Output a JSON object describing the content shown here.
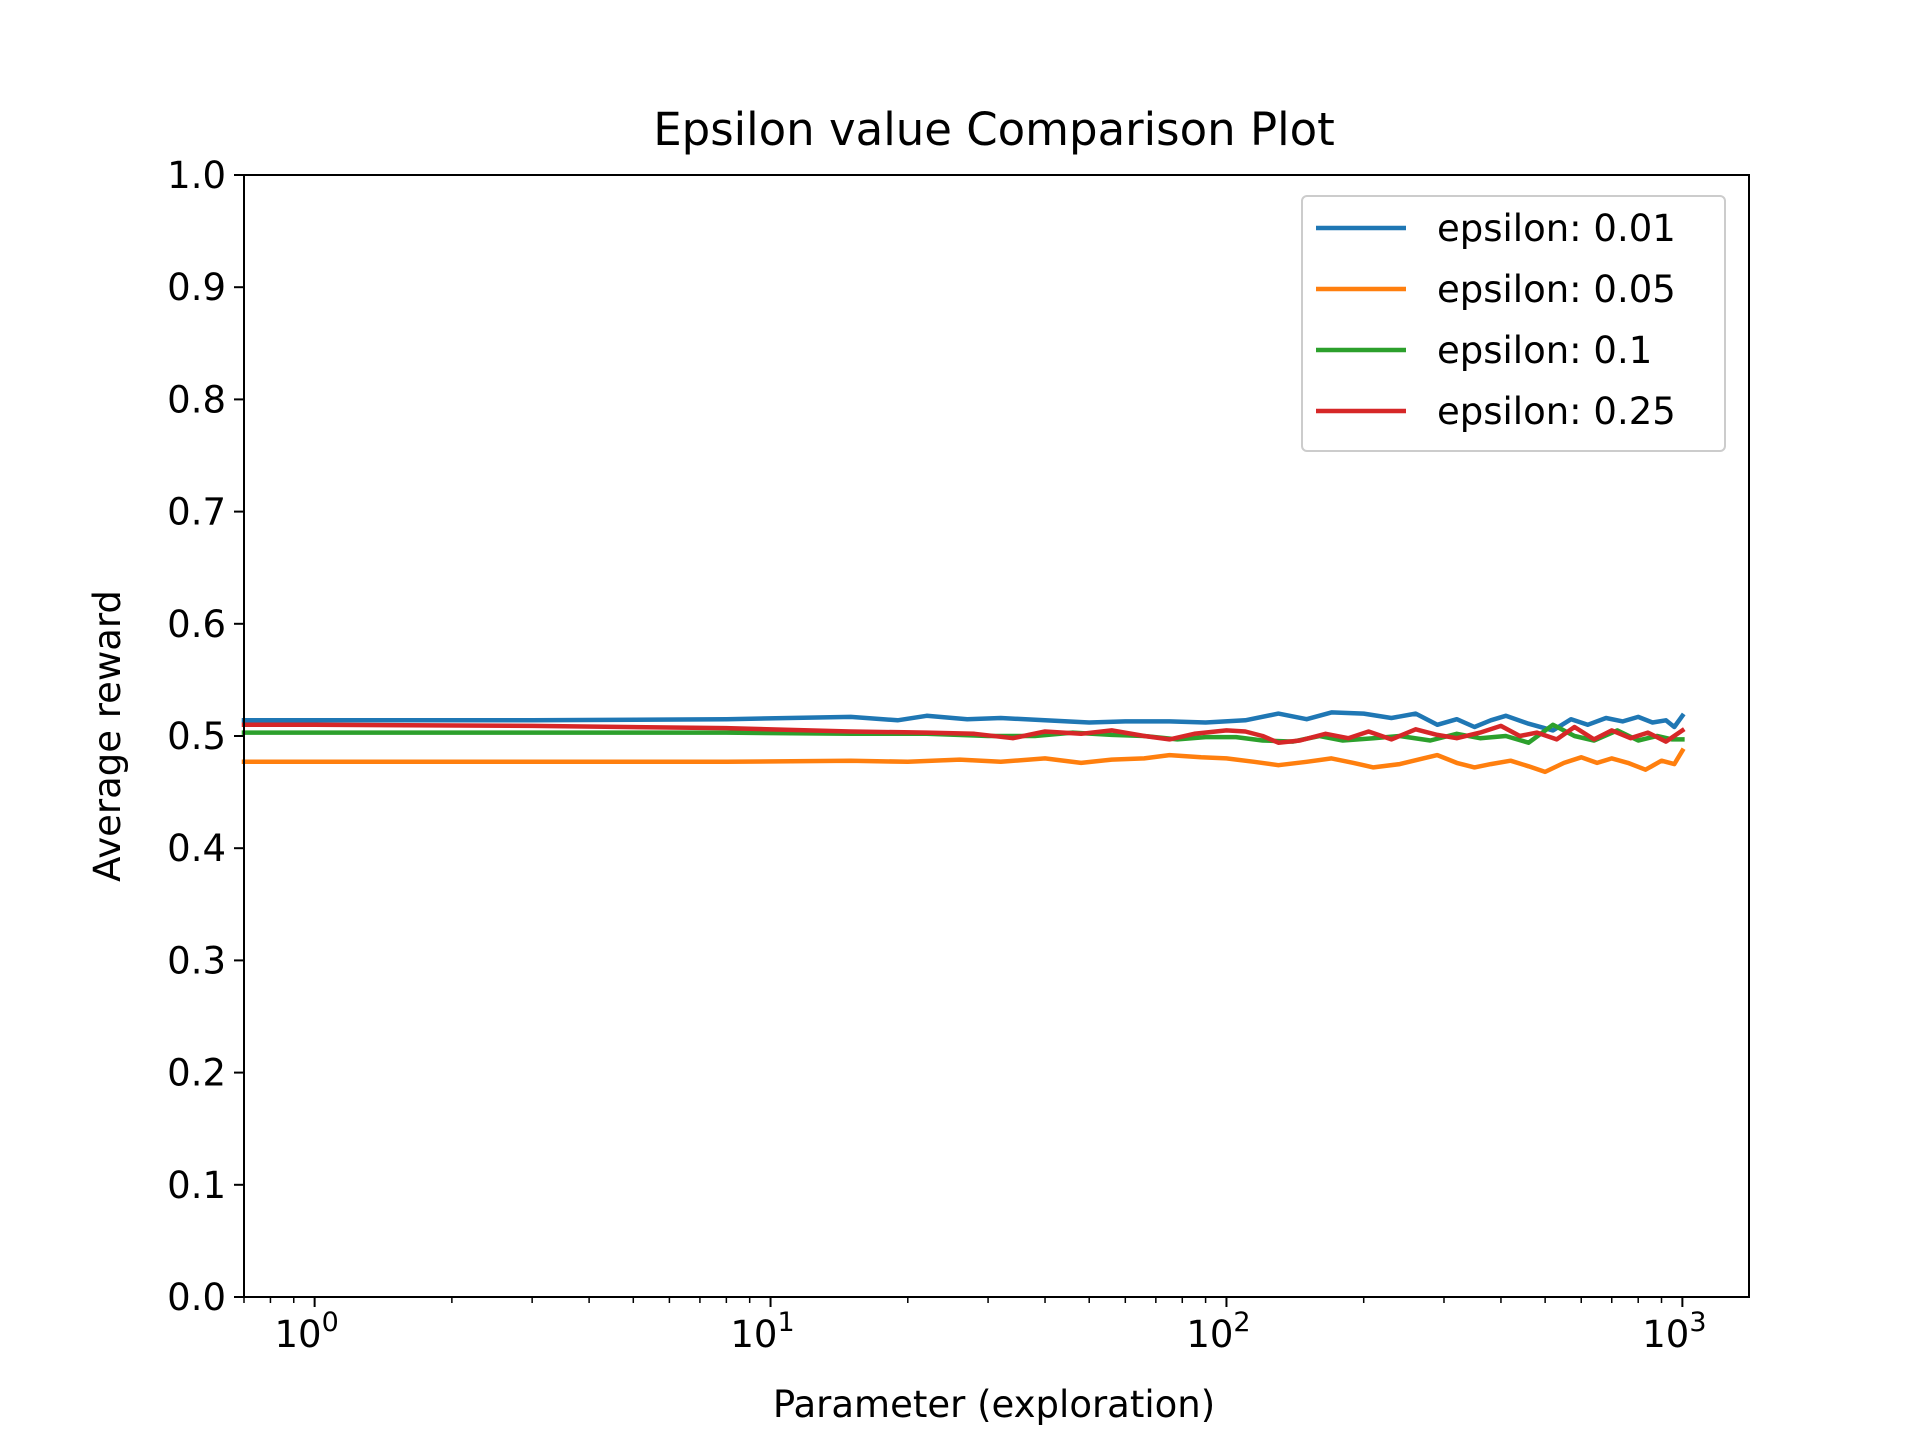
{
  "chart_data": {
    "type": "line",
    "title": "Epsilon value Comparison Plot",
    "xlabel": "Parameter (exploration)",
    "ylabel": "Average reward",
    "xscale": "log",
    "xlim": [
      0.7,
      1400
    ],
    "ylim": [
      0.0,
      1.0
    ],
    "x_ticks": [
      {
        "base": "10",
        "exp": "0"
      },
      {
        "base": "10",
        "exp": "1"
      },
      {
        "base": "10",
        "exp": "2"
      },
      {
        "base": "10",
        "exp": "3"
      }
    ],
    "y_ticks": [
      "0.0",
      "0.1",
      "0.2",
      "0.3",
      "0.4",
      "0.5",
      "0.6",
      "0.7",
      "0.8",
      "0.9",
      "1.0"
    ],
    "legend_position": "top-right",
    "grid": false,
    "series": [
      {
        "name": "epsilon: 0.01",
        "color": "#1f77b4",
        "points": [
          [
            0.7,
            0.514
          ],
          [
            1,
            0.514
          ],
          [
            3,
            0.514
          ],
          [
            8,
            0.515
          ],
          [
            15,
            0.517
          ],
          [
            19,
            0.514
          ],
          [
            22,
            0.518
          ],
          [
            27,
            0.515
          ],
          [
            32,
            0.516
          ],
          [
            40,
            0.514
          ],
          [
            50,
            0.512
          ],
          [
            60,
            0.513
          ],
          [
            75,
            0.513
          ],
          [
            90,
            0.512
          ],
          [
            110,
            0.514
          ],
          [
            130,
            0.52
          ],
          [
            150,
            0.515
          ],
          [
            170,
            0.521
          ],
          [
            200,
            0.52
          ],
          [
            230,
            0.516
          ],
          [
            260,
            0.52
          ],
          [
            290,
            0.51
          ],
          [
            320,
            0.515
          ],
          [
            350,
            0.508
          ],
          [
            380,
            0.514
          ],
          [
            410,
            0.518
          ],
          [
            460,
            0.511
          ],
          [
            520,
            0.505
          ],
          [
            570,
            0.515
          ],
          [
            620,
            0.51
          ],
          [
            680,
            0.516
          ],
          [
            740,
            0.513
          ],
          [
            800,
            0.517
          ],
          [
            860,
            0.512
          ],
          [
            920,
            0.514
          ],
          [
            960,
            0.508
          ],
          [
            1000,
            0.518
          ]
        ]
      },
      {
        "name": "epsilon: 0.05",
        "color": "#ff7f0e",
        "points": [
          [
            0.7,
            0.477
          ],
          [
            1,
            0.477
          ],
          [
            3,
            0.477
          ],
          [
            8,
            0.477
          ],
          [
            15,
            0.478
          ],
          [
            20,
            0.477
          ],
          [
            26,
            0.479
          ],
          [
            32,
            0.477
          ],
          [
            40,
            0.48
          ],
          [
            48,
            0.476
          ],
          [
            56,
            0.479
          ],
          [
            66,
            0.48
          ],
          [
            75,
            0.483
          ],
          [
            88,
            0.481
          ],
          [
            100,
            0.48
          ],
          [
            115,
            0.477
          ],
          [
            130,
            0.474
          ],
          [
            150,
            0.477
          ],
          [
            170,
            0.48
          ],
          [
            190,
            0.476
          ],
          [
            210,
            0.472
          ],
          [
            240,
            0.475
          ],
          [
            270,
            0.48
          ],
          [
            290,
            0.483
          ],
          [
            320,
            0.476
          ],
          [
            350,
            0.472
          ],
          [
            380,
            0.475
          ],
          [
            420,
            0.478
          ],
          [
            460,
            0.473
          ],
          [
            500,
            0.468
          ],
          [
            550,
            0.476
          ],
          [
            600,
            0.481
          ],
          [
            650,
            0.476
          ],
          [
            700,
            0.48
          ],
          [
            760,
            0.476
          ],
          [
            830,
            0.47
          ],
          [
            900,
            0.478
          ],
          [
            960,
            0.475
          ],
          [
            1000,
            0.487
          ]
        ]
      },
      {
        "name": "epsilon: 0.1",
        "color": "#2ca02c",
        "points": [
          [
            0.7,
            0.503
          ],
          [
            1,
            0.503
          ],
          [
            3,
            0.503
          ],
          [
            8,
            0.503
          ],
          [
            15,
            0.502
          ],
          [
            22,
            0.502
          ],
          [
            30,
            0.5
          ],
          [
            38,
            0.5
          ],
          [
            46,
            0.503
          ],
          [
            56,
            0.501
          ],
          [
            66,
            0.5
          ],
          [
            78,
            0.497
          ],
          [
            90,
            0.499
          ],
          [
            105,
            0.499
          ],
          [
            120,
            0.496
          ],
          [
            140,
            0.495
          ],
          [
            160,
            0.5
          ],
          [
            180,
            0.496
          ],
          [
            210,
            0.498
          ],
          [
            240,
            0.5
          ],
          [
            280,
            0.496
          ],
          [
            320,
            0.502
          ],
          [
            360,
            0.498
          ],
          [
            410,
            0.5
          ],
          [
            460,
            0.494
          ],
          [
            520,
            0.51
          ],
          [
            580,
            0.5
          ],
          [
            640,
            0.496
          ],
          [
            720,
            0.505
          ],
          [
            800,
            0.496
          ],
          [
            880,
            0.5
          ],
          [
            950,
            0.497
          ],
          [
            1000,
            0.497
          ]
        ]
      },
      {
        "name": "epsilon: 0.25",
        "color": "#d62728",
        "points": [
          [
            0.7,
            0.51
          ],
          [
            1,
            0.51
          ],
          [
            3,
            0.509
          ],
          [
            8,
            0.507
          ],
          [
            15,
            0.504
          ],
          [
            22,
            0.503
          ],
          [
            28,
            0.502
          ],
          [
            34,
            0.498
          ],
          [
            40,
            0.504
          ],
          [
            48,
            0.502
          ],
          [
            56,
            0.505
          ],
          [
            66,
            0.5
          ],
          [
            75,
            0.497
          ],
          [
            85,
            0.502
          ],
          [
            100,
            0.505
          ],
          [
            110,
            0.504
          ],
          [
            120,
            0.5
          ],
          [
            130,
            0.494
          ],
          [
            145,
            0.496
          ],
          [
            165,
            0.502
          ],
          [
            185,
            0.498
          ],
          [
            205,
            0.504
          ],
          [
            230,
            0.497
          ],
          [
            260,
            0.506
          ],
          [
            290,
            0.501
          ],
          [
            320,
            0.498
          ],
          [
            360,
            0.503
          ],
          [
            400,
            0.509
          ],
          [
            440,
            0.5
          ],
          [
            480,
            0.503
          ],
          [
            530,
            0.497
          ],
          [
            580,
            0.508
          ],
          [
            640,
            0.497
          ],
          [
            700,
            0.505
          ],
          [
            770,
            0.498
          ],
          [
            840,
            0.503
          ],
          [
            920,
            0.495
          ],
          [
            1000,
            0.505
          ]
        ]
      }
    ]
  }
}
